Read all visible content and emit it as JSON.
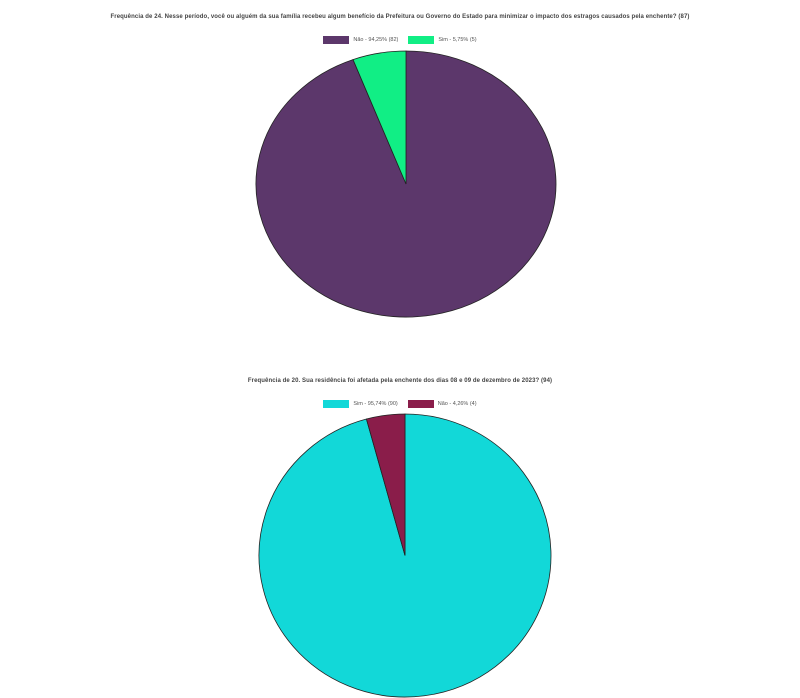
{
  "chart_data": [
    {
      "type": "pie",
      "title": "Frequência de 24. Nesse período, você ou alguém da sua família recebeu algum benefício da Prefeitura ou Governo do Estado para minimizar o impacto dos estragos causados pela enchente? (87)",
      "legend_position": "top",
      "slices": [
        {
          "label": "Não - 94,25% (82)",
          "value": 82,
          "color": "#5c376b"
        },
        {
          "label": "Sim - 5,75% (5)",
          "value": 5,
          "color": "#11ee85"
        }
      ]
    },
    {
      "type": "pie",
      "title": "Frequência de 20. Sua residência foi afetada pela enchente dos dias 08 e 09 de dezembro de 2023? (94)",
      "legend_position": "top",
      "slices": [
        {
          "label": "Sim - 95,74% (90)",
          "value": 90,
          "color": "#12d8d8"
        },
        {
          "label": "Não - 4,26% (4)",
          "value": 4,
          "color": "#8a1d4a"
        }
      ]
    }
  ]
}
